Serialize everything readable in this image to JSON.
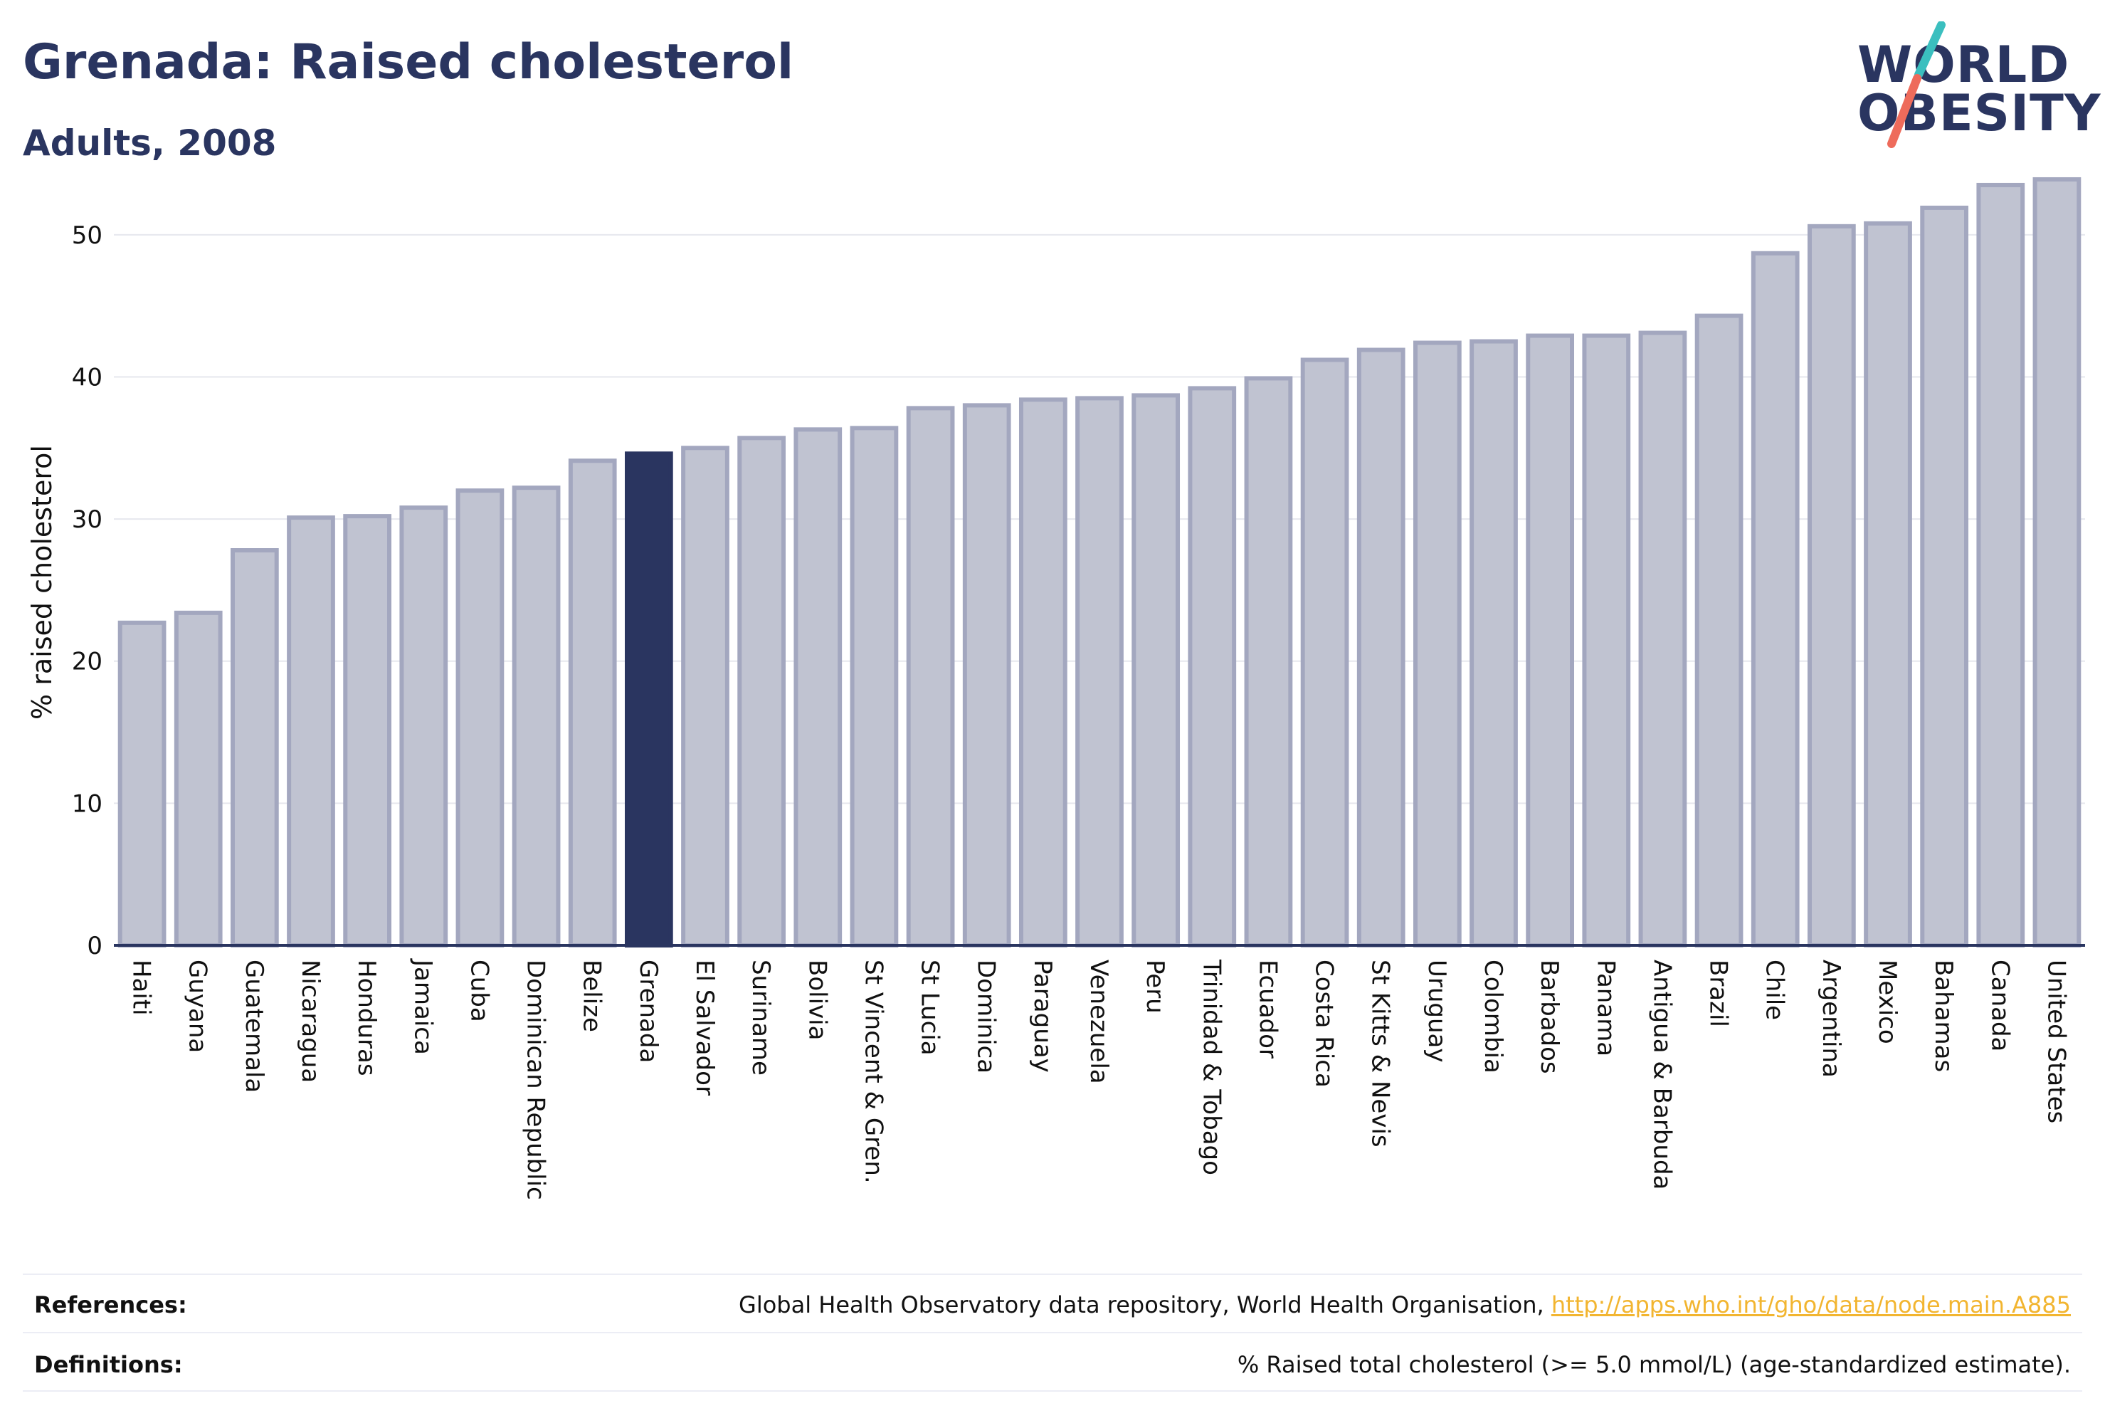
{
  "header": {
    "title": "Grenada: Raised cholesterol",
    "subtitle": "Adults, 2008"
  },
  "logo": {
    "line1": "WORLD",
    "line2": "OBESITY",
    "accent_teal": "#3bbfbf",
    "accent_coral": "#ee6b5b"
  },
  "colors": {
    "bar_fill": "#c0c3d1",
    "bar_stroke": "#a3a7bf",
    "highlight_fill": "#2a3560",
    "text": "#2a3560",
    "link": "#f2b530"
  },
  "chart_data": {
    "type": "bar",
    "ylabel": "% raised cholesterol",
    "ylim": [
      0,
      55
    ],
    "yticks": [
      0,
      10,
      20,
      30,
      40,
      50
    ],
    "grid": true,
    "highlight": "Grenada",
    "categories": [
      "Haiti",
      "Guyana",
      "Guatemala",
      "Nicaragua",
      "Honduras",
      "Jamaica",
      "Cuba",
      "Dominican Republic",
      "Belize",
      "Grenada",
      "El Salvador",
      "Suriname",
      "Bolivia",
      "St Vincent & Gren.",
      "St Lucia",
      "Dominica",
      "Paraguay",
      "Venezuela",
      "Peru",
      "Trinidad & Tobago",
      "Ecuador",
      "Costa Rica",
      "St Kitts & Nevis",
      "Uruguay",
      "Colombia",
      "Barbados",
      "Panama",
      "Antigua & Barbuda",
      "Brazil",
      "Chile",
      "Argentina",
      "Mexico",
      "Bahamas",
      "Canada",
      "United States"
    ],
    "values": [
      22.7,
      23.4,
      27.8,
      30.1,
      30.2,
      30.8,
      32.0,
      32.2,
      34.1,
      34.6,
      35.0,
      35.7,
      36.3,
      36.4,
      37.8,
      38.0,
      38.4,
      38.5,
      38.7,
      39.2,
      39.9,
      41.2,
      41.9,
      42.4,
      42.5,
      42.9,
      42.9,
      43.1,
      44.3,
      48.7,
      50.6,
      50.8,
      51.9,
      53.5,
      53.9
    ]
  },
  "footer": {
    "references_label": "References:",
    "references_text": "Global Health Observatory data repository, World Health Organisation, ",
    "references_link": "http://apps.who.int/gho/data/node.main.A885",
    "definitions_label": "Definitions:",
    "definitions_text": "% Raised total cholesterol (>= 5.0 mmol/L) (age-standardized estimate)."
  }
}
